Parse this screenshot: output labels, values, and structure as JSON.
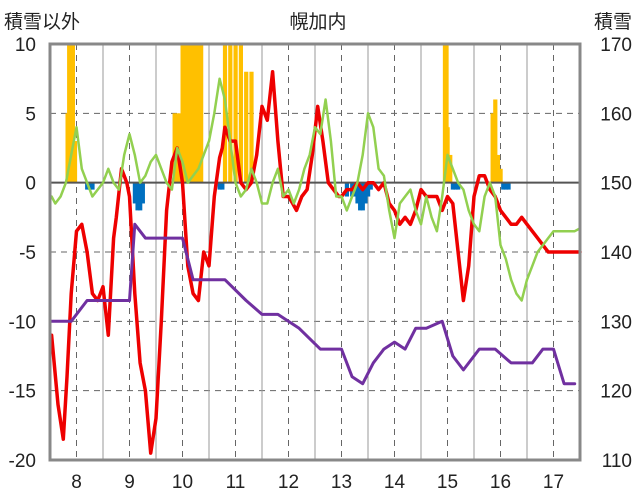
{
  "chart_data": {
    "type": "line",
    "title": "幌加内",
    "left_axis_label": "積雪以外",
    "right_axis_label": "積雪",
    "left_ylim": [
      -20,
      10
    ],
    "left_ticks": [
      "10",
      "5",
      "0",
      "-5",
      "-10",
      "-15",
      "-20"
    ],
    "right_ylim": [
      110,
      170
    ],
    "right_ticks": [
      "170",
      "160",
      "150",
      "140",
      "130",
      "120",
      "110"
    ],
    "xlim": [
      7.5,
      17.5
    ],
    "x_ticks": [
      "8",
      "9",
      "10",
      "11",
      "12",
      "13",
      "14",
      "15",
      "16",
      "17"
    ],
    "grid": true,
    "colors": {
      "red": "#ee0000",
      "green": "#92d050",
      "purple": "#7030a0",
      "orange": "#ffc000",
      "blue": "#0070c0"
    },
    "series": [
      {
        "color": "red",
        "axis": "left",
        "x": [
          7.53,
          7.65,
          7.75,
          7.82,
          7.9,
          8.0,
          8.1,
          8.2,
          8.3,
          8.4,
          8.5,
          8.6,
          8.7,
          8.75,
          8.85,
          8.95,
          9.0,
          9.1,
          9.2,
          9.3,
          9.4,
          9.5,
          9.6,
          9.7,
          9.8,
          9.9,
          10.0,
          10.1,
          10.2,
          10.3,
          10.4,
          10.5,
          10.6,
          10.7,
          10.75,
          10.8,
          10.9,
          11.0,
          11.1,
          11.2,
          11.3,
          11.4,
          11.5,
          11.6,
          11.7,
          11.8,
          11.9,
          12.0,
          12.08,
          12.15,
          12.25,
          12.35,
          12.45,
          12.55,
          12.65,
          12.75,
          12.85,
          12.95,
          13.0,
          13.1,
          13.2,
          13.3,
          13.4,
          13.5,
          13.6,
          13.7,
          13.8,
          13.9,
          14.0,
          14.1,
          14.2,
          14.3,
          14.4,
          14.5,
          14.6,
          14.7,
          14.8,
          14.9,
          15.0,
          15.1,
          15.2,
          15.3,
          15.4,
          15.5,
          15.6,
          15.7,
          15.8,
          15.9,
          16.0,
          16.1,
          16.2,
          16.3,
          16.4,
          16.5,
          16.6,
          16.7,
          16.8,
          16.9,
          17.0,
          17.1,
          17.2,
          17.3,
          17.4,
          17.5
        ],
        "values": [
          -11,
          -16,
          -18.5,
          -14,
          -8,
          -3.5,
          -3,
          -5,
          -8,
          -8.5,
          -7.5,
          -11,
          -4,
          -2.5,
          1,
          0,
          -1,
          -8,
          -13,
          -15,
          -19.5,
          -17,
          -10,
          -2,
          1.5,
          2.5,
          0,
          -6,
          -8,
          -8.5,
          -5,
          -6,
          -1,
          1.8,
          2.5,
          4,
          3,
          3,
          0,
          -0.5,
          0,
          2,
          5.5,
          4.5,
          8,
          3,
          -1,
          -1,
          -1.5,
          -2,
          -1,
          -0.5,
          2,
          5.5,
          3,
          0,
          -0.5,
          -1,
          -1,
          -0.5,
          -0.5,
          0,
          -0.5,
          0,
          0,
          -0.5,
          0,
          -1.5,
          -2,
          -3,
          -2.5,
          -3,
          -2,
          -0.5,
          -1,
          -1,
          -1,
          -2,
          -1,
          -1.5,
          -5,
          -8.5,
          -6,
          -1,
          0.5,
          0.5,
          -0.5,
          -1,
          -2,
          -2.5,
          -3,
          -3,
          -2.5,
          -3,
          -3.5,
          -4,
          -4.5,
          -5,
          -5,
          -5,
          -5,
          -5,
          -5,
          -5
        ]
      },
      {
        "color": "green",
        "axis": "left",
        "x": [
          7.53,
          7.6,
          7.7,
          7.8,
          7.9,
          8.0,
          8.1,
          8.2,
          8.3,
          8.4,
          8.5,
          8.6,
          8.7,
          8.8,
          8.9,
          9.0,
          9.1,
          9.2,
          9.3,
          9.4,
          9.5,
          9.6,
          9.7,
          9.8,
          9.9,
          10.0,
          10.1,
          10.2,
          10.3,
          10.4,
          10.5,
          10.6,
          10.7,
          10.8,
          10.9,
          11.0,
          11.1,
          11.2,
          11.3,
          11.4,
          11.5,
          11.6,
          11.7,
          11.8,
          11.9,
          12.0,
          12.1,
          12.2,
          12.3,
          12.4,
          12.5,
          12.6,
          12.7,
          12.8,
          12.9,
          13.0,
          13.1,
          13.2,
          13.3,
          13.4,
          13.5,
          13.6,
          13.7,
          13.8,
          13.9,
          14.0,
          14.1,
          14.2,
          14.3,
          14.4,
          14.5,
          14.6,
          14.7,
          14.8,
          14.9,
          15.0,
          15.1,
          15.2,
          15.3,
          15.4,
          15.5,
          15.6,
          15.7,
          15.8,
          15.9,
          16.0,
          16.1,
          16.2,
          16.3,
          16.4,
          16.5,
          16.6,
          16.7,
          16.8,
          16.9,
          17.0,
          17.1,
          17.2,
          17.3,
          17.4,
          17.5
        ],
        "values": [
          -1,
          -1.5,
          -1,
          0,
          2,
          4,
          1,
          0,
          -1,
          -0.5,
          0,
          1,
          0,
          -0.5,
          2,
          3.5,
          2,
          0,
          0.5,
          1.5,
          2,
          1,
          0,
          -0.5,
          2.5,
          1.5,
          0,
          0.5,
          1,
          2,
          3,
          5,
          7.5,
          6,
          3,
          0,
          -1,
          -0.5,
          1,
          0,
          -1.5,
          -1.5,
          0,
          1,
          -1,
          -0.5,
          -1.5,
          -0.5,
          1,
          2,
          4,
          3.5,
          6,
          3,
          -1,
          -1,
          -2,
          -1,
          0,
          2,
          5,
          4,
          1,
          0.5,
          -2,
          -4,
          -1.5,
          -1,
          -0.5,
          -2,
          -3,
          -1,
          -2.5,
          -3.5,
          -1,
          2,
          1,
          0,
          -0.5,
          -2,
          -3,
          -3.5,
          -1,
          0,
          -1,
          -4.5,
          -5.5,
          -7,
          -8,
          -8.5,
          -7,
          -6,
          -5,
          -4.5,
          -4,
          -3.5,
          -3.5,
          -3.5,
          -3.5,
          -3.5,
          -3.3
        ]
      },
      {
        "color": "purple",
        "axis": "right",
        "x": [
          7.53,
          7.9,
          8.2,
          8.5,
          8.9,
          9.0,
          9.1,
          9.3,
          9.6,
          9.8,
          10.0,
          10.2,
          10.3,
          10.5,
          10.8,
          11.2,
          11.5,
          11.8,
          12.2,
          12.6,
          13.0,
          13.2,
          13.4,
          13.6,
          13.8,
          14.0,
          14.2,
          14.4,
          14.6,
          14.9,
          15.1,
          15.3,
          15.6,
          15.9,
          16.2,
          16.4,
          16.6,
          16.8,
          17.0,
          17.2,
          17.4
        ],
        "values": [
          130,
          130,
          133,
          133,
          133,
          133,
          144,
          142,
          142,
          142,
          142,
          136,
          136,
          136,
          136,
          133,
          131,
          131,
          129,
          126,
          126,
          122,
          121,
          124,
          126,
          127,
          126,
          129,
          129,
          130,
          125,
          123,
          126,
          126,
          124,
          124,
          124,
          126,
          126,
          121,
          121
        ]
      }
    ],
    "bars": [
      {
        "color": "orange",
        "axis": "left",
        "x": [
          7.83,
          7.86,
          7.9,
          7.93,
          7.97,
          9.85,
          9.9,
          9.95,
          10.0,
          10.05,
          10.1,
          10.15,
          10.2,
          10.25,
          10.3,
          10.35,
          10.8,
          10.9,
          11.0,
          11.1,
          11.2,
          11.3,
          14.95,
          14.98,
          15.0,
          15.05,
          15.85,
          15.9,
          15.95,
          16.0
        ],
        "values": [
          5,
          10,
          10,
          10,
          3,
          5,
          5,
          5,
          10,
          10,
          10,
          10,
          10,
          10,
          10,
          10,
          10,
          10,
          10,
          10,
          8,
          8,
          10,
          10,
          4,
          2,
          5,
          6,
          2,
          1
        ]
      },
      {
        "color": "blue",
        "axis": "left",
        "x": [
          8.2,
          8.25,
          8.3,
          9.1,
          9.15,
          9.2,
          9.25,
          10.7,
          10.75,
          13.1,
          13.2,
          13.25,
          13.3,
          13.35,
          13.4,
          13.45,
          13.5,
          13.55,
          15.1,
          15.15,
          15.2,
          16.05,
          16.1,
          16.15
        ],
        "values": [
          -0.5,
          -0.5,
          -0.5,
          -1.5,
          -2,
          -2,
          -1.5,
          -0.5,
          -0.5,
          -1,
          -1,
          -1,
          -1.5,
          -2,
          -2,
          -1.5,
          -1,
          -0.5,
          -0.5,
          -0.5,
          -0.5,
          -0.5,
          -0.5,
          -0.5
        ]
      }
    ]
  }
}
